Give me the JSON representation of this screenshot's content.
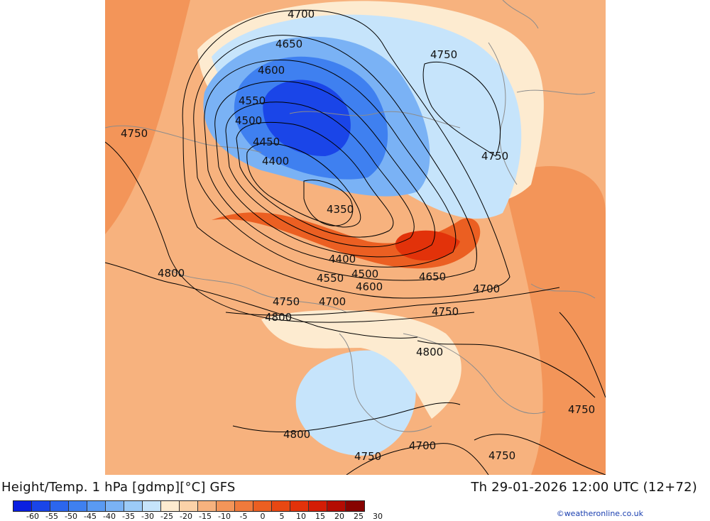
{
  "title": "Height/Temp. 1 hPa [gdmp][°C] GFS",
  "valid_time": "Th 29-01-2026 12:00 UTC (12+72)",
  "credit": "©weatheronline.co.uk",
  "legend": {
    "ticks": [
      "-60",
      "-55",
      "-50",
      "-45",
      "-40",
      "-35",
      "-30",
      "-25",
      "-20",
      "-15",
      "-10",
      "-5",
      "0",
      "5",
      "10",
      "15",
      "20",
      "25",
      "30"
    ],
    "colors": [
      "#0a1fe0",
      "#1a45e8",
      "#2c66ee",
      "#3f80f0",
      "#5a9af2",
      "#7ab2f5",
      "#9ccbf8",
      "#c6e4fb",
      "#fdebd0",
      "#fbd2a8",
      "#f7b27e",
      "#f39559",
      "#f07a3c",
      "#eb5f22",
      "#e84813",
      "#e2320a",
      "#d41d05",
      "#b40c02",
      "#870300"
    ]
  },
  "contour_labels": [
    "4700",
    "4650",
    "4600",
    "4550",
    "4500",
    "4450",
    "4400",
    "4350",
    "4750",
    "4750",
    "4750",
    "4400",
    "4550",
    "4500",
    "4600",
    "4650",
    "4700",
    "4750",
    "4700",
    "4750",
    "4800",
    "4800",
    "4800",
    "4800",
    "4750",
    "4750",
    "4700",
    "4750"
  ]
}
